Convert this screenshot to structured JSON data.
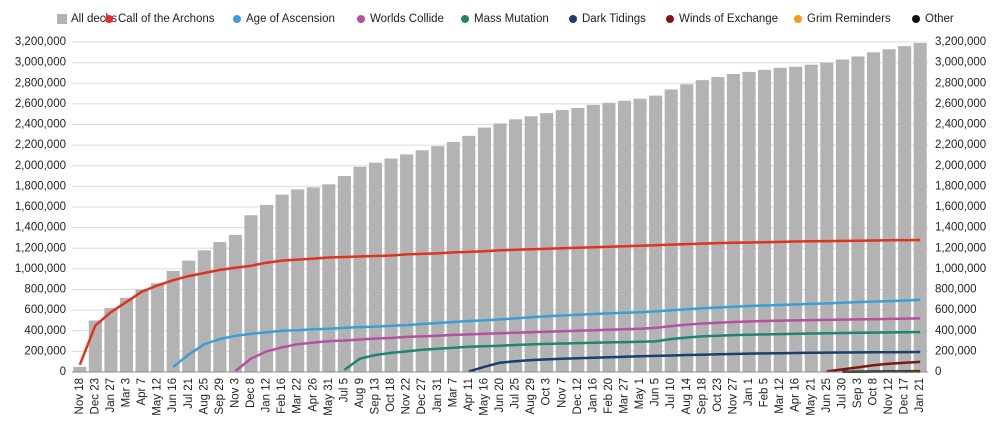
{
  "chart_data": {
    "type": "bar",
    "categories": [
      "Nov 18",
      "Dec 23",
      "Jan 27",
      "Mar 3",
      "Apr 7",
      "May 12",
      "Jun 16",
      "Jul 21",
      "Aug 25",
      "Sep 29",
      "Nov 3",
      "Dec 8",
      "Jan 12",
      "Feb 16",
      "Mar 22",
      "Apr 26",
      "May 31",
      "Jul 5",
      "Aug 9",
      "Sep 13",
      "Oct 18",
      "Nov 22",
      "Dec 27",
      "Jan 31",
      "Mar 7",
      "Apr 11",
      "May 16",
      "Jun 20",
      "Jul 25",
      "Aug 29",
      "Oct 3",
      "Nov 7",
      "Dec 12",
      "Jan 16",
      "Feb 20",
      "Mar 27",
      "May 1",
      "Jun 5",
      "Jul 10",
      "Aug 14",
      "Sep 18",
      "Oct 23",
      "Nov 27",
      "Jan 1",
      "Feb 5",
      "Mar 12",
      "Apr 16",
      "May 21",
      "Jun 25",
      "Jul 30",
      "Sep 3",
      "Oct 8",
      "Nov 12",
      "Dec 17",
      "Jan 21"
    ],
    "series": [
      {
        "name": "All decks",
        "type": "bar",
        "color": "#b3b3b3",
        "values": [
          50000,
          500000,
          620000,
          720000,
          800000,
          860000,
          980000,
          1080000,
          1180000,
          1260000,
          1330000,
          1520000,
          1620000,
          1720000,
          1770000,
          1790000,
          1820000,
          1900000,
          1990000,
          2030000,
          2070000,
          2110000,
          2150000,
          2190000,
          2230000,
          2290000,
          2370000,
          2410000,
          2450000,
          2480000,
          2510000,
          2540000,
          2560000,
          2590000,
          2610000,
          2630000,
          2650000,
          2680000,
          2740000,
          2790000,
          2830000,
          2860000,
          2890000,
          2910000,
          2930000,
          2950000,
          2960000,
          2980000,
          3000000,
          3030000,
          3060000,
          3100000,
          3130000,
          3160000,
          3190000
        ]
      },
      {
        "name": "Call of the Archons",
        "type": "line",
        "color": "#e0321e",
        "values": [
          70000,
          450000,
          580000,
          680000,
          780000,
          840000,
          890000,
          930000,
          960000,
          990000,
          1010000,
          1030000,
          1060000,
          1080000,
          1090000,
          1100000,
          1110000,
          1115000,
          1120000,
          1125000,
          1130000,
          1140000,
          1145000,
          1150000,
          1160000,
          1165000,
          1170000,
          1180000,
          1185000,
          1190000,
          1195000,
          1200000,
          1205000,
          1210000,
          1215000,
          1220000,
          1225000,
          1230000,
          1235000,
          1240000,
          1245000,
          1250000,
          1253000,
          1256000,
          1259000,
          1262000,
          1265000,
          1267000,
          1269000,
          1271000,
          1273000,
          1275000,
          1277000,
          1279000,
          1280000
        ]
      },
      {
        "name": "Age of Ascension",
        "type": "line",
        "color": "#3a9fd6",
        "values": [
          null,
          null,
          null,
          null,
          null,
          null,
          50000,
          170000,
          270000,
          320000,
          350000,
          370000,
          385000,
          400000,
          405000,
          415000,
          420000,
          428000,
          435000,
          440000,
          448000,
          455000,
          465000,
          475000,
          485000,
          495000,
          500000,
          510000,
          520000,
          530000,
          540000,
          548000,
          555000,
          562000,
          568000,
          575000,
          580000,
          588000,
          598000,
          608000,
          618000,
          625000,
          632000,
          640000,
          645000,
          650000,
          655000,
          660000,
          665000,
          672000,
          678000,
          683000,
          688000,
          693000,
          700000
        ]
      },
      {
        "name": "Worlds Collide",
        "type": "line",
        "color": "#b5519e",
        "values": [
          null,
          null,
          null,
          null,
          null,
          null,
          null,
          null,
          null,
          null,
          10000,
          130000,
          200000,
          240000,
          270000,
          285000,
          300000,
          305000,
          315000,
          325000,
          330000,
          340000,
          345000,
          352000,
          360000,
          365000,
          370000,
          375000,
          380000,
          385000,
          390000,
          395000,
          400000,
          405000,
          410000,
          415000,
          420000,
          428000,
          445000,
          460000,
          470000,
          478000,
          485000,
          490000,
          495000,
          498000,
          500000,
          503000,
          505000,
          508000,
          510000,
          512000,
          515000,
          518000,
          520000
        ]
      },
      {
        "name": "Mass Mutation",
        "type": "line",
        "color": "#1c8671",
        "values": [
          null,
          null,
          null,
          null,
          null,
          null,
          null,
          null,
          null,
          null,
          null,
          null,
          null,
          null,
          null,
          null,
          null,
          20000,
          130000,
          165000,
          185000,
          200000,
          215000,
          225000,
          235000,
          245000,
          250000,
          255000,
          262000,
          268000,
          272000,
          276000,
          280000,
          283000,
          287000,
          290000,
          293000,
          297000,
          320000,
          335000,
          345000,
          352000,
          358000,
          362000,
          365000,
          368000,
          370000,
          373000,
          375000,
          378000,
          380000,
          382000,
          384000,
          386000,
          388000
        ]
      },
      {
        "name": "Dark Tidings",
        "type": "line",
        "color": "#183f6e",
        "values": [
          null,
          null,
          null,
          null,
          null,
          null,
          null,
          null,
          null,
          null,
          null,
          null,
          null,
          null,
          null,
          null,
          null,
          null,
          null,
          null,
          null,
          null,
          null,
          null,
          null,
          5000,
          50000,
          90000,
          105000,
          115000,
          122000,
          128000,
          133000,
          138000,
          143000,
          148000,
          152000,
          156000,
          160000,
          165000,
          168000,
          172000,
          175000,
          178000,
          180000,
          182000,
          184000,
          186000,
          188000,
          189000,
          190000,
          191000,
          192000,
          193000,
          194000
        ]
      },
      {
        "name": "Winds of Exchange",
        "type": "line",
        "color": "#7e1711",
        "values": [
          null,
          null,
          null,
          null,
          null,
          null,
          null,
          null,
          null,
          null,
          null,
          null,
          null,
          null,
          null,
          null,
          null,
          null,
          null,
          null,
          null,
          null,
          null,
          null,
          null,
          null,
          null,
          null,
          null,
          null,
          null,
          null,
          null,
          null,
          null,
          null,
          null,
          null,
          null,
          null,
          null,
          null,
          null,
          null,
          null,
          null,
          null,
          null,
          5000,
          25000,
          45000,
          65000,
          80000,
          90000,
          98000
        ]
      },
      {
        "name": "Grim Reminders",
        "type": "line",
        "color": "#f39c1c",
        "values": [
          null,
          null,
          null,
          null,
          null,
          null,
          null,
          null,
          null,
          null,
          null,
          null,
          null,
          null,
          null,
          null,
          null,
          null,
          null,
          null,
          null,
          null,
          null,
          null,
          null,
          null,
          null,
          null,
          null,
          null,
          null,
          null,
          null,
          null,
          null,
          null,
          null,
          null,
          null,
          null,
          null,
          null,
          null,
          null,
          null,
          null,
          null,
          null,
          null,
          null,
          null,
          null,
          null,
          2000,
          15000
        ]
      },
      {
        "name": "Other",
        "type": "line",
        "color": "#111111",
        "values": [
          null,
          null,
          null,
          null,
          null,
          null,
          null,
          null,
          null,
          null,
          null,
          null,
          null,
          null,
          null,
          null,
          null,
          null,
          null,
          null,
          null,
          null,
          null,
          null,
          null,
          null,
          null,
          null,
          null,
          null,
          null,
          null,
          null,
          null,
          null,
          null,
          null,
          null,
          null,
          null,
          null,
          null,
          null,
          null,
          null,
          null,
          null,
          null,
          null,
          2000,
          3000,
          4000,
          5000,
          5000,
          5000
        ]
      }
    ],
    "ylim": [
      0,
      3200000
    ],
    "yticks": [
      {
        "value": 0,
        "label": "0"
      },
      {
        "value": 200000,
        "label": "200,000"
      },
      {
        "value": 400000,
        "label": "400,000"
      },
      {
        "value": 600000,
        "label": "600,000"
      },
      {
        "value": 800000,
        "label": "800,000"
      },
      {
        "value": 1000000,
        "label": "1,000,000"
      },
      {
        "value": 1200000,
        "label": "1,200,000"
      },
      {
        "value": 1400000,
        "label": "1,400,000"
      },
      {
        "value": 1600000,
        "label": "1,600,000"
      },
      {
        "value": 1800000,
        "label": "1,800,000"
      },
      {
        "value": 2000000,
        "label": "2,000,000"
      },
      {
        "value": 2200000,
        "label": "2,200,000"
      },
      {
        "value": 2400000,
        "label": "2,400,000"
      },
      {
        "value": 2600000,
        "label": "2,600,000"
      },
      {
        "value": 2800000,
        "label": "2,800,000"
      },
      {
        "value": 3000000,
        "label": "3,000,000"
      },
      {
        "value": 3200000,
        "label": "3,200,000"
      }
    ],
    "y2lim": [
      0,
      3200000
    ],
    "y2ticks": [
      {
        "value": 0,
        "label": "0"
      },
      {
        "value": 200000,
        "label": "200,000"
      },
      {
        "value": 400000,
        "label": "400,000"
      },
      {
        "value": 600000,
        "label": "600,000"
      },
      {
        "value": 800000,
        "label": "800,000"
      },
      {
        "value": 1000000,
        "label": "1,000,000"
      },
      {
        "value": 1200000,
        "label": "1,200,000"
      },
      {
        "value": 1400000,
        "label": "1,400,000"
      },
      {
        "value": 1600000,
        "label": "1,600,000"
      },
      {
        "value": 1800000,
        "label": "1,800,000"
      },
      {
        "value": 2000000,
        "label": "2,000,000"
      },
      {
        "value": 2200000,
        "label": "2,200,000"
      },
      {
        "value": 2400000,
        "label": "2,400,000"
      },
      {
        "value": 2600000,
        "label": "2,600,000"
      },
      {
        "value": 2800000,
        "label": "2,800,000"
      },
      {
        "value": 3000000,
        "label": "3,000,000"
      },
      {
        "value": 3200000,
        "label": "3,200,000"
      }
    ],
    "grid": true,
    "legend": "top"
  }
}
